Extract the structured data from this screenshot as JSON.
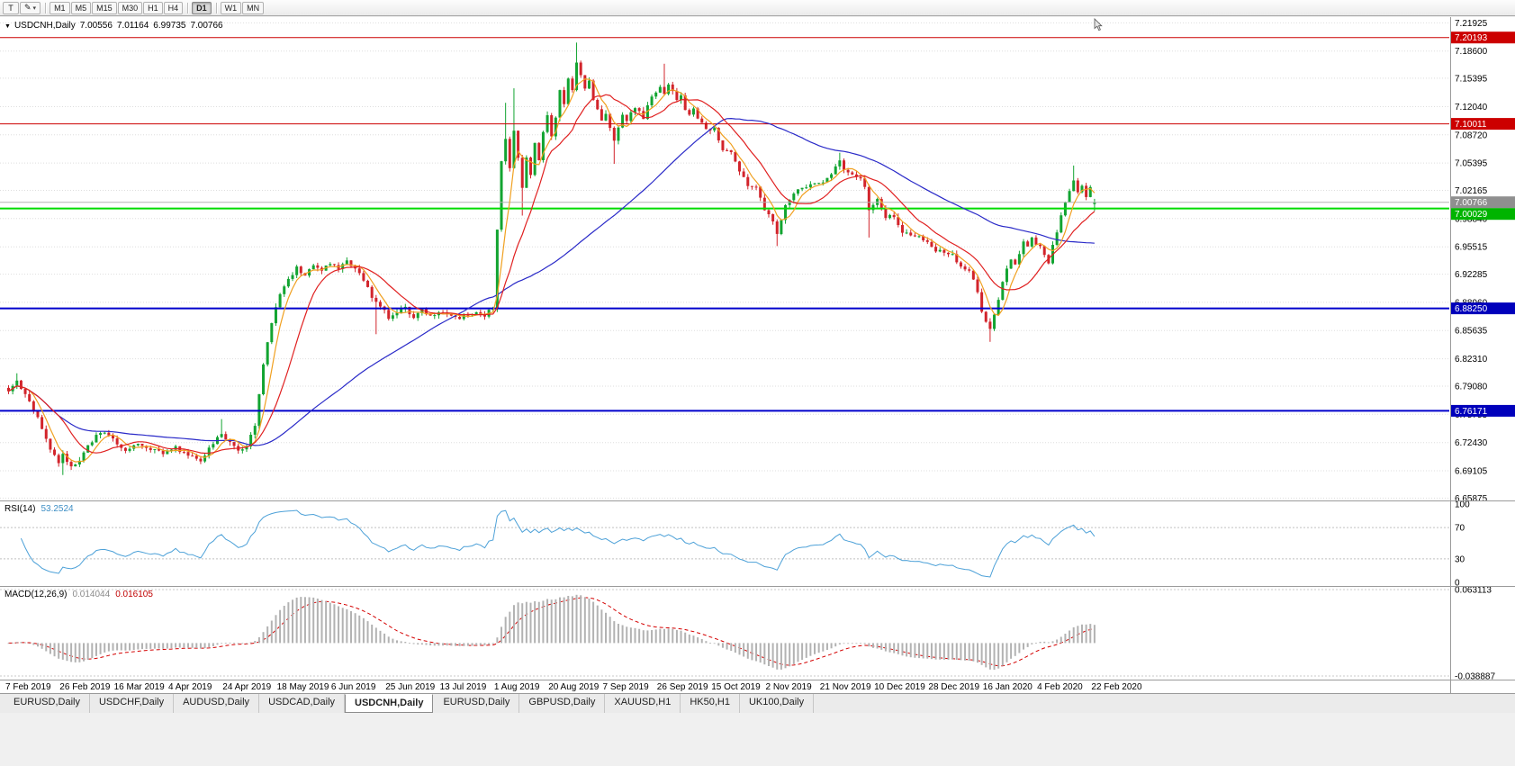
{
  "toolbar": {
    "text_tool": "T",
    "draw_tool_glyph": "✎",
    "dropdown_glyph": "▾",
    "timeframe_groups": [
      [
        "M1",
        "M5",
        "M15",
        "M30",
        "H1",
        "H4"
      ],
      [
        "D1"
      ],
      [
        "W1",
        "MN"
      ]
    ],
    "active_timeframe": "D1"
  },
  "chart_header": {
    "collapse_icon": "▼",
    "title": "USDCNH,Daily",
    "open": "7.00556",
    "high": "7.01164",
    "low": "6.99735",
    "close": "7.00766"
  },
  "bottom_tabs": [
    {
      "label": "EURUSD,Daily",
      "active": false
    },
    {
      "label": "USDCHF,Daily",
      "active": false
    },
    {
      "label": "AUDUSD,Daily",
      "active": false
    },
    {
      "label": "USDCAD,Daily",
      "active": false
    },
    {
      "label": "USDCNH,Daily",
      "active": true
    },
    {
      "label": "EURUSD,Daily",
      "active": false
    },
    {
      "label": "GBPUSD,Daily",
      "active": false
    },
    {
      "label": "XAUUSD,H1",
      "active": false
    },
    {
      "label": "HK50,H1",
      "active": false
    },
    {
      "label": "UK100,Daily",
      "active": false
    }
  ],
  "chart_data": {
    "type": "candlestick",
    "symbol": "USDCNH",
    "timeframe": "Daily",
    "candle_count": 261,
    "candles_per_date_tick": 13,
    "noise": 0.005,
    "x_labels": [
      "7 Feb 2019",
      "26 Feb 2019",
      "16 Mar 2019",
      "4 Apr 2019",
      "24 Apr 2019",
      "18 May 2019",
      "6 Jun 2019",
      "25 Jun 2019",
      "13 Jul 2019",
      "1 Aug 2019",
      "20 Aug 2019",
      "7 Sep 2019",
      "26 Sep 2019",
      "15 Oct 2019",
      "2 Nov 2019",
      "21 Nov 2019",
      "10 Dec 2019",
      "28 Dec 2019",
      "16 Jan 2020",
      "4 Feb 2020",
      "22 Feb 2020"
    ],
    "price_axis": {
      "top_price": 7.226,
      "bottom_price": 6.656,
      "ticks": [
        "7.21925",
        "7.18600",
        "7.15395",
        "7.12040",
        "7.08720",
        "7.05395",
        "7.02165",
        "6.98840",
        "6.95515",
        "6.92285",
        "6.88960",
        "6.85635",
        "6.82310",
        "6.79080",
        "6.75755",
        "6.72430",
        "6.69105",
        "6.65875"
      ]
    },
    "last_candle": {
      "open": 7.00556,
      "high": 7.01164,
      "low": 6.99735,
      "close": 7.00766
    },
    "close_waypoints": [
      [
        0,
        6.786
      ],
      [
        2,
        6.796
      ],
      [
        4,
        6.783
      ],
      [
        6,
        6.762
      ],
      [
        8,
        6.742
      ],
      [
        10,
        6.716
      ],
      [
        12,
        6.7
      ],
      [
        13,
        6.712
      ],
      [
        15,
        6.695
      ],
      [
        17,
        6.704
      ],
      [
        19,
        6.722
      ],
      [
        22,
        6.736
      ],
      [
        25,
        6.729
      ],
      [
        28,
        6.714
      ],
      [
        31,
        6.722
      ],
      [
        34,
        6.718
      ],
      [
        37,
        6.711
      ],
      [
        40,
        6.719
      ],
      [
        43,
        6.709
      ],
      [
        46,
        6.701
      ],
      [
        48,
        6.716
      ],
      [
        51,
        6.735
      ],
      [
        53,
        6.724
      ],
      [
        55,
        6.713
      ],
      [
        57,
        6.722
      ],
      [
        59,
        6.742
      ],
      [
        60,
        6.782
      ],
      [
        61,
        6.818
      ],
      [
        62,
        6.843
      ],
      [
        63,
        6.866
      ],
      [
        64,
        6.884
      ],
      [
        65,
        6.898
      ],
      [
        67,
        6.917
      ],
      [
        69,
        6.93
      ],
      [
        71,
        6.923
      ],
      [
        73,
        6.934
      ],
      [
        75,
        6.927
      ],
      [
        77,
        6.936
      ],
      [
        79,
        6.929
      ],
      [
        81,
        6.94
      ],
      [
        83,
        6.929
      ],
      [
        85,
        6.917
      ],
      [
        87,
        6.897
      ],
      [
        89,
        6.886
      ],
      [
        91,
        6.871
      ],
      [
        93,
        6.878
      ],
      [
        95,
        6.884
      ],
      [
        97,
        6.871
      ],
      [
        99,
        6.879
      ],
      [
        102,
        6.875
      ],
      [
        105,
        6.877
      ],
      [
        108,
        6.872
      ],
      [
        111,
        6.877
      ],
      [
        114,
        6.873
      ],
      [
        116,
        6.884
      ],
      [
        117,
        6.975
      ],
      [
        118,
        7.056
      ],
      [
        119,
        7.083
      ],
      [
        120,
        7.048
      ],
      [
        121,
        7.092
      ],
      [
        122,
        7.058
      ],
      [
        123,
        7.024
      ],
      [
        124,
        7.058
      ],
      [
        125,
        7.038
      ],
      [
        126,
        7.078
      ],
      [
        127,
        7.058
      ],
      [
        128,
        7.092
      ],
      [
        129,
        7.112
      ],
      [
        130,
        7.083
      ],
      [
        131,
        7.108
      ],
      [
        132,
        7.138
      ],
      [
        133,
        7.122
      ],
      [
        134,
        7.152
      ],
      [
        135,
        7.14
      ],
      [
        136,
        7.172
      ],
      [
        137,
        7.158
      ],
      [
        138,
        7.14
      ],
      [
        139,
        7.15
      ],
      [
        140,
        7.128
      ],
      [
        141,
        7.116
      ],
      [
        142,
        7.106
      ],
      [
        143,
        7.112
      ],
      [
        144,
        7.093
      ],
      [
        145,
        7.08
      ],
      [
        146,
        7.094
      ],
      [
        147,
        7.11
      ],
      [
        148,
        7.103
      ],
      [
        150,
        7.12
      ],
      [
        152,
        7.108
      ],
      [
        154,
        7.132
      ],
      [
        156,
        7.146
      ],
      [
        157,
        7.133
      ],
      [
        158,
        7.148
      ],
      [
        159,
        7.14
      ],
      [
        160,
        7.126
      ],
      [
        161,
        7.136
      ],
      [
        162,
        7.118
      ],
      [
        163,
        7.11
      ],
      [
        164,
        7.12
      ],
      [
        165,
        7.106
      ],
      [
        167,
        7.096
      ],
      [
        169,
        7.093
      ],
      [
        171,
        7.07
      ],
      [
        173,
        7.066
      ],
      [
        175,
        7.046
      ],
      [
        177,
        7.026
      ],
      [
        179,
        7.026
      ],
      [
        181,
        7.0
      ],
      [
        183,
        6.986
      ],
      [
        184,
        6.972
      ],
      [
        186,
        7.004
      ],
      [
        188,
        7.02
      ],
      [
        190,
        7.024
      ],
      [
        192,
        7.027
      ],
      [
        194,
        7.031
      ],
      [
        196,
        7.034
      ],
      [
        198,
        7.05
      ],
      [
        199,
        7.058
      ],
      [
        200,
        7.046
      ],
      [
        202,
        7.04
      ],
      [
        204,
        7.036
      ],
      [
        205,
        7.027
      ],
      [
        206,
        6.996
      ],
      [
        208,
        7.01
      ],
      [
        210,
        6.991
      ],
      [
        212,
        6.99
      ],
      [
        214,
        6.974
      ],
      [
        216,
        6.971
      ],
      [
        218,
        6.967
      ],
      [
        220,
        6.961
      ],
      [
        222,
        6.951
      ],
      [
        224,
        6.947
      ],
      [
        226,
        6.946
      ],
      [
        228,
        6.931
      ],
      [
        230,
        6.927
      ],
      [
        231,
        6.919
      ],
      [
        232,
        6.903
      ],
      [
        233,
        6.879
      ],
      [
        234,
        6.866
      ],
      [
        235,
        6.856
      ],
      [
        236,
        6.873
      ],
      [
        237,
        6.893
      ],
      [
        238,
        6.913
      ],
      [
        239,
        6.929
      ],
      [
        240,
        6.941
      ],
      [
        241,
        6.934
      ],
      [
        242,
        6.949
      ],
      [
        243,
        6.96
      ],
      [
        244,
        6.956
      ],
      [
        245,
        6.968
      ],
      [
        246,
        6.96
      ],
      [
        247,
        6.956
      ],
      [
        248,
        6.944
      ],
      [
        249,
        6.937
      ],
      [
        250,
        6.957
      ],
      [
        251,
        6.974
      ],
      [
        252,
        6.991
      ],
      [
        253,
        7.007
      ],
      [
        254,
        7.021
      ],
      [
        255,
        7.034
      ],
      [
        256,
        7.02
      ],
      [
        257,
        7.029
      ],
      [
        258,
        7.016
      ],
      [
        259,
        7.024
      ],
      [
        260,
        7.008
      ]
    ],
    "spikes": [
      {
        "i": 2,
        "high": 6.806
      },
      {
        "i": 13,
        "low": 6.686
      },
      {
        "i": 51,
        "high": 6.752
      },
      {
        "i": 88,
        "low": 6.852
      },
      {
        "i": 119,
        "high": 7.125
      },
      {
        "i": 121,
        "high": 7.142
      },
      {
        "i": 123,
        "low": 6.992
      },
      {
        "i": 136,
        "high": 7.196
      },
      {
        "i": 145,
        "low": 7.053
      },
      {
        "i": 157,
        "high": 7.171
      },
      {
        "i": 184,
        "low": 6.956
      },
      {
        "i": 199,
        "high": 7.066
      },
      {
        "i": 206,
        "low": 6.966
      },
      {
        "i": 235,
        "low": 6.843
      },
      {
        "i": 255,
        "high": 7.051
      }
    ],
    "h_lines": [
      {
        "name": "resistance-line-upper",
        "price": 7.20193,
        "color": "#cc0000",
        "width": 1,
        "badge": "7.20193",
        "badge_bg": "#cc0000"
      },
      {
        "name": "resistance-line",
        "price": 7.10011,
        "color": "#cc0000",
        "width": 1,
        "badge": "7.10011",
        "badge_bg": "#cc0000"
      },
      {
        "name": "current-price-line",
        "price": 7.00766,
        "color": "#b4b4b4",
        "width": 1,
        "badge": "7.00766",
        "badge_bg": "#8f8f8f"
      },
      {
        "name": "support-line-green",
        "price": 7.00029,
        "color": "#00dc00",
        "width": 2,
        "badge": "7.00029",
        "badge_bg": "#00b400"
      },
      {
        "name": "support-line-blue-upper",
        "price": 6.8825,
        "color": "#0000cc",
        "width": 2,
        "badge": "6.88250",
        "badge_bg": "#0000bb"
      },
      {
        "name": "support-line-blue-lower",
        "price": 6.76171,
        "color": "#0000cc",
        "width": 2,
        "badge": "6.76171",
        "badge_bg": "#0000bb"
      }
    ],
    "moving_averages": [
      {
        "period": 55,
        "color": "#2a2ac8"
      },
      {
        "period": 5,
        "color": "#f0a020"
      },
      {
        "period": 13,
        "color": "#e02020"
      }
    ],
    "rsi": {
      "label": "RSI(14)",
      "value": "53.2524",
      "period": 14,
      "levels": [
        70,
        30
      ],
      "axis_labels": [
        "100",
        "70",
        "30",
        "0"
      ],
      "color": "#4da1d8"
    },
    "macd": {
      "label": "MACD(12,26,9)",
      "value": "0.014044",
      "signal_value": "0.016105",
      "fast": 12,
      "slow": 26,
      "signal": 9,
      "range": [
        -0.038887,
        0.063113
      ],
      "axis_labels": [
        "0.063113",
        "-0.038887"
      ],
      "hist_color": "#b2b2b2",
      "signal_color": "#d40000"
    },
    "colors": {
      "up": "#12a431",
      "down": "#d2242b",
      "grid": "#dedede",
      "bg": "#ffffff"
    }
  }
}
